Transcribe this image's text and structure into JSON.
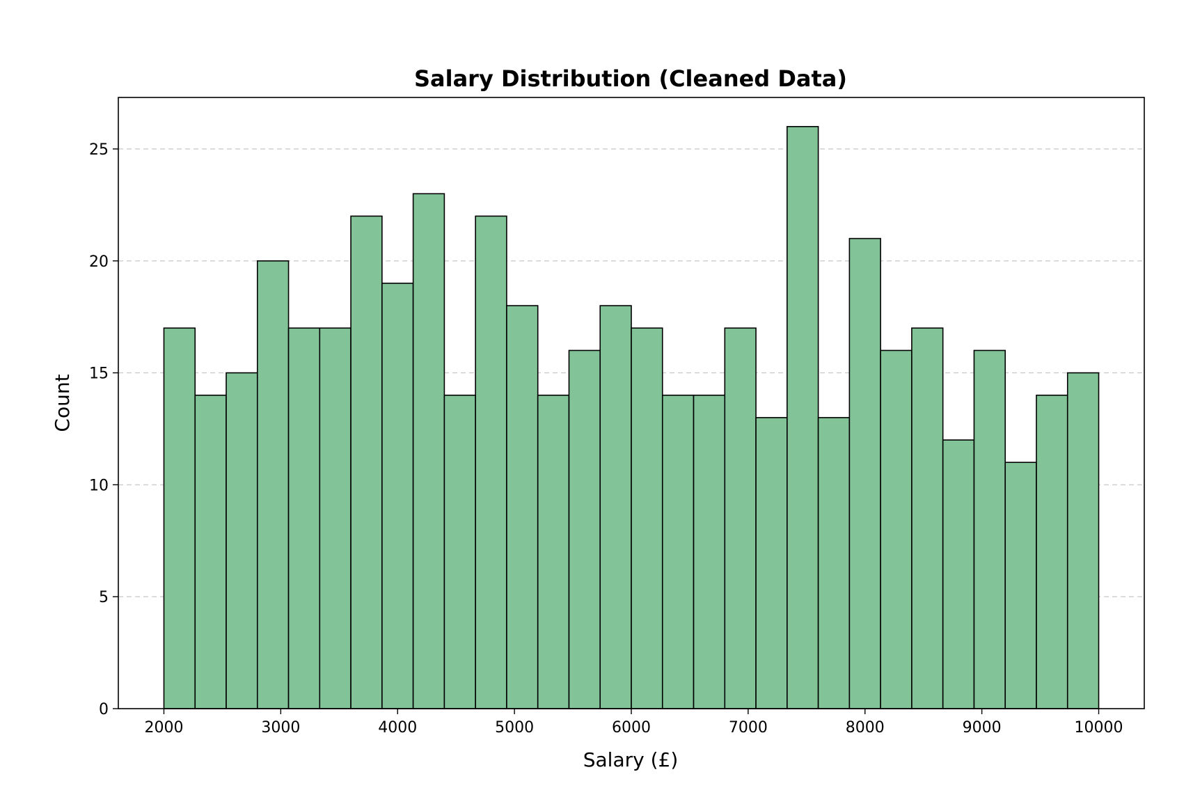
{
  "chart_data": {
    "type": "bar",
    "title": "Salary Distribution (Cleaned Data)",
    "xlabel": "Salary (£)",
    "ylabel": "Count",
    "xlim": [
      1610,
      10390
    ],
    "ylim": [
      0,
      27.3
    ],
    "x_ticks": [
      "2000",
      "3000",
      "4000",
      "5000",
      "6000",
      "7000",
      "8000",
      "9000",
      "10000"
    ],
    "y_ticks": [
      "0",
      "5",
      "10",
      "15",
      "20",
      "25"
    ],
    "grid": "y-dashed",
    "bar_color": "#82c497",
    "edge_color": "#000000",
    "bins": [
      {
        "x0": 2000,
        "x1": 2266.7,
        "count": 17
      },
      {
        "x0": 2266.7,
        "x1": 2533.3,
        "count": 14
      },
      {
        "x0": 2533.3,
        "x1": 2800,
        "count": 15
      },
      {
        "x0": 2800,
        "x1": 3066.7,
        "count": 20
      },
      {
        "x0": 3066.7,
        "x1": 3333.3,
        "count": 17
      },
      {
        "x0": 3333.3,
        "x1": 3600,
        "count": 17
      },
      {
        "x0": 3600,
        "x1": 3866.7,
        "count": 22
      },
      {
        "x0": 3866.7,
        "x1": 4133.3,
        "count": 19
      },
      {
        "x0": 4133.3,
        "x1": 4400,
        "count": 23
      },
      {
        "x0": 4400,
        "x1": 4666.7,
        "count": 14
      },
      {
        "x0": 4666.7,
        "x1": 4933.3,
        "count": 22
      },
      {
        "x0": 4933.3,
        "x1": 5200,
        "count": 18
      },
      {
        "x0": 5200,
        "x1": 5466.7,
        "count": 14
      },
      {
        "x0": 5466.7,
        "x1": 5733.3,
        "count": 16
      },
      {
        "x0": 5733.3,
        "x1": 6000,
        "count": 18
      },
      {
        "x0": 6000,
        "x1": 6266.7,
        "count": 17
      },
      {
        "x0": 6266.7,
        "x1": 6533.3,
        "count": 14
      },
      {
        "x0": 6533.3,
        "x1": 6800,
        "count": 14
      },
      {
        "x0": 6800,
        "x1": 7066.7,
        "count": 17
      },
      {
        "x0": 7066.7,
        "x1": 7333.3,
        "count": 13
      },
      {
        "x0": 7333.3,
        "x1": 7600,
        "count": 26
      },
      {
        "x0": 7600,
        "x1": 7866.7,
        "count": 13
      },
      {
        "x0": 7866.7,
        "x1": 8133.3,
        "count": 21
      },
      {
        "x0": 8133.3,
        "x1": 8400,
        "count": 16
      },
      {
        "x0": 8400,
        "x1": 8666.7,
        "count": 17
      },
      {
        "x0": 8666.7,
        "x1": 8933.3,
        "count": 12
      },
      {
        "x0": 8933.3,
        "x1": 9200,
        "count": 16
      },
      {
        "x0": 9200,
        "x1": 9466.7,
        "count": 11
      },
      {
        "x0": 9466.7,
        "x1": 9733.3,
        "count": 14
      },
      {
        "x0": 9733.3,
        "x1": 10000,
        "count": 15
      }
    ]
  }
}
